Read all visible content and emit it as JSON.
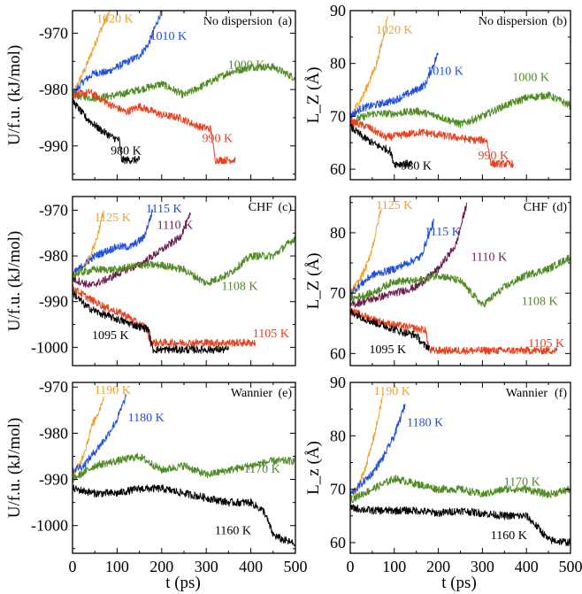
{
  "chart_data": {
    "type": "line",
    "shared_xlabel": "t (ps)",
    "xlim": [
      0,
      500
    ],
    "x_ticks": [
      0,
      100,
      200,
      300,
      400,
      500
    ],
    "panels": [
      {
        "panel_label": "(a)",
        "method": "No dispersion",
        "ylabel": "U/f.u. (kJ/mol)",
        "ylim": [
          -996,
          -966
        ],
        "y_ticks": [
          -990,
          -980,
          -970
        ],
        "series": [
          {
            "name": "1020 K",
            "color": "#f0a22e",
            "label_xy": [
              95,
              -967.3
            ],
            "x": [
              0,
              15,
              30,
              45,
              60,
              75,
              85
            ],
            "y": [
              -981,
              -978.5,
              -976,
              -973,
              -970,
              -967.5,
              -966
            ]
          },
          {
            "name": "1010 K",
            "color": "#1f4fe0",
            "label_xy": [
              215,
              -970.4
            ],
            "x": [
              0,
              25,
              50,
              75,
              100,
              125,
              150,
              170,
              185,
              200
            ],
            "y": [
              -981,
              -978.5,
              -977,
              -977,
              -976,
              -975,
              -974,
              -972,
              -969,
              -966
            ]
          },
          {
            "name": "1000 K",
            "color": "#4f8a22",
            "label_xy": [
              390,
              -975.5
            ],
            "x": [
              0,
              50,
              100,
              150,
              200,
              250,
              300,
              350,
              400,
              450,
              500
            ],
            "y": [
              -981,
              -981.5,
              -981,
              -980,
              -979,
              -981,
              -979,
              -977,
              -976,
              -976,
              -978
            ]
          },
          {
            "name": "990 K",
            "color": "#e8401c",
            "label_xy": [
              325,
              -988.5
            ],
            "x": [
              0,
              40,
              80,
              120,
              150,
              200,
              240,
              280,
              310,
              320,
              365
            ],
            "y": [
              -981,
              -980.5,
              -982.5,
              -984,
              -983,
              -984.5,
              -985,
              -986.5,
              -987,
              -992.5,
              -992.5
            ]
          },
          {
            "name": "980 K",
            "color": "#000000",
            "label_xy": [
              120,
              -990.7
            ],
            "x": [
              0,
              30,
              60,
              90,
              105,
              110,
              150
            ],
            "y": [
              -982,
              -985,
              -987,
              -988.5,
              -989,
              -992.5,
              -992.5
            ]
          }
        ]
      },
      {
        "panel_label": "(b)",
        "method": "No dispersion",
        "ylabel": "L_Z (Å)",
        "ylim": [
          58,
          90
        ],
        "y_ticks": [
          60,
          70,
          80,
          90
        ],
        "series": [
          {
            "name": "1020 K",
            "color": "#f0a22e",
            "label_xy": [
              100,
              86.5
            ],
            "x": [
              0,
              15,
              30,
              45,
              60,
              75,
              85
            ],
            "y": [
              70,
              72,
              74,
              77,
              80,
              85,
              89
            ]
          },
          {
            "name": "1010 K",
            "color": "#1f4fe0",
            "label_xy": [
              215,
              78.7
            ],
            "x": [
              0,
              25,
              50,
              75,
              100,
              125,
              150,
              170,
              185,
              200
            ],
            "y": [
              70,
              71.5,
              72,
              72.5,
              73,
              74,
              75,
              76,
              79,
              82
            ]
          },
          {
            "name": "1000 K",
            "color": "#4f8a22",
            "label_xy": [
              410,
              77.5
            ],
            "x": [
              0,
              50,
              100,
              150,
              200,
              250,
              300,
              350,
              400,
              450,
              500
            ],
            "y": [
              69,
              70.5,
              70.5,
              71,
              70,
              68.5,
              70,
              72,
              73.5,
              74,
              72
            ]
          },
          {
            "name": "990 K",
            "color": "#e8401c",
            "label_xy": [
              325,
              62.7
            ],
            "x": [
              0,
              40,
              80,
              120,
              160,
              200,
              240,
              280,
              310,
              320,
              370
            ],
            "y": [
              69,
              68,
              66,
              66.5,
              67,
              66.5,
              66,
              65.5,
              65.5,
              61,
              61
            ]
          },
          {
            "name": "980 K",
            "color": "#000000",
            "label_xy": [
              150,
              60.8
            ],
            "x": [
              0,
              30,
              60,
              90,
              100,
              140
            ],
            "y": [
              68,
              66,
              64.5,
              63.5,
              61,
              61
            ]
          }
        ]
      },
      {
        "panel_label": "(c)",
        "method": "CHF",
        "ylabel": "U/f.u. (kJ/mol)",
        "ylim": [
          -1004,
          -967
        ],
        "y_ticks": [
          -1000,
          -990,
          -980,
          -970
        ],
        "series": [
          {
            "name": "1125 K",
            "color": "#f0a22e",
            "label_xy": [
              90,
              -971.5
            ],
            "x": [
              0,
              20,
              40,
              55,
              70
            ],
            "y": [
              -985,
              -983,
              -980,
              -976,
              -970
            ]
          },
          {
            "name": "1115 K",
            "color": "#1f4fe0",
            "label_xy": [
              205,
              -969.5
            ],
            "x": [
              0,
              50,
              100,
              130,
              160,
              180
            ],
            "y": [
              -984,
              -980,
              -978,
              -978,
              -976,
              -970
            ]
          },
          {
            "name": "1110 K",
            "color": "#6b1d52",
            "label_xy": [
              230,
              -973.1
            ],
            "x": [
              0,
              40,
              80,
              120,
              150,
              180,
              210,
              240,
              265
            ],
            "y": [
              -985,
              -986.5,
              -985,
              -983,
              -982,
              -980,
              -978,
              -976,
              -971
            ]
          },
          {
            "name": "1108 K",
            "color": "#4f8a22",
            "label_xy": [
              375,
              -986.5
            ],
            "x": [
              0,
              50,
              100,
              150,
              200,
              250,
              300,
              350,
              400,
              450,
              500
            ],
            "y": [
              -984,
              -983,
              -983,
              -982,
              -982,
              -983,
              -986,
              -984,
              -980,
              -980,
              -976
            ]
          },
          {
            "name": "1105 K",
            "color": "#e8401c",
            "label_xy": [
              445,
              -996.8
            ],
            "x": [
              0,
              40,
              80,
              120,
              150,
              165,
              175,
              250,
              350,
              410
            ],
            "y": [
              -987,
              -989.5,
              -991.5,
              -993,
              -995,
              -995.5,
              -999,
              -999,
              -999,
              -999
            ]
          },
          {
            "name": "1095 K",
            "color": "#000000",
            "label_xy": [
              85,
              -997.2
            ],
            "x": [
              0,
              30,
              60,
              90,
              120,
              150,
              170,
              180,
              250,
              350
            ],
            "y": [
              -988,
              -991,
              -992.5,
              -993.5,
              -994.5,
              -995.5,
              -996,
              -1000.5,
              -1000.5,
              -1000.5
            ]
          }
        ]
      },
      {
        "panel_label": "(d)",
        "method": "CHF",
        "ylabel": "L_Z (Å)",
        "ylim": [
          58,
          86
        ],
        "y_ticks": [
          60,
          70,
          80
        ],
        "series": [
          {
            "name": "1125 K",
            "color": "#f0a22e",
            "label_xy": [
              100,
              84.7
            ],
            "x": [
              0,
              20,
              40,
              55,
              70
            ],
            "y": [
              70,
              72,
              75,
              79,
              84
            ]
          },
          {
            "name": "1115 K",
            "color": "#1f4fe0",
            "label_xy": [
              210,
              80.3
            ],
            "x": [
              0,
              50,
              100,
              130,
              160,
              190
            ],
            "y": [
              70,
              73,
              74,
              75,
              76,
              82
            ]
          },
          {
            "name": "1110 K",
            "color": "#6b1d52",
            "label_xy": [
              315,
              76.1
            ],
            "x": [
              0,
              50,
              100,
              150,
              200,
              240,
              265
            ],
            "y": [
              68,
              69,
              70,
              71,
              74,
              78,
              85
            ]
          },
          {
            "name": "1108 K",
            "color": "#4f8a22",
            "label_xy": [
              430,
              68.8
            ],
            "x": [
              0,
              50,
              100,
              150,
              200,
              250,
              300,
              350,
              400,
              450,
              500
            ],
            "y": [
              69,
              70,
              72,
              72,
              73,
              72,
              68,
              71,
              73,
              74,
              76
            ]
          },
          {
            "name": "1105 K",
            "color": "#e8401c",
            "label_xy": [
              445,
              61.8
            ],
            "x": [
              0,
              40,
              80,
              120,
              160,
              170,
              180,
              300,
              400,
              470
            ],
            "y": [
              67,
              66,
              65,
              64.5,
              64,
              64,
              60.5,
              60.5,
              60.5,
              60.5
            ]
          },
          {
            "name": "1095 K",
            "color": "#000000",
            "label_xy": [
              85,
              60.8
            ],
            "x": [
              0,
              40,
              80,
              120,
              150,
              165,
              180
            ],
            "y": [
              67,
              65.5,
              64.5,
              63.5,
              63,
              61.5,
              61
            ]
          }
        ]
      },
      {
        "panel_label": "(e)",
        "method": "Wannier",
        "ylabel": "U/f.u. (kJ/mol)",
        "ylim": [
          -1006,
          -969
        ],
        "y_ticks": [
          -1000,
          -990,
          -980,
          -970
        ],
        "series": [
          {
            "name": "1190 K",
            "color": "#f0a22e",
            "label_xy": [
              90,
              -970.5
            ],
            "x": [
              0,
              15,
              30,
              45,
              60,
              70
            ],
            "y": [
              -989,
              -987,
              -983,
              -978,
              -975,
              -972
            ]
          },
          {
            "name": "1180 K",
            "color": "#1f4fe0",
            "label_xy": [
              165,
              -976.5
            ],
            "x": [
              0,
              25,
              50,
              75,
              100,
              120
            ],
            "y": [
              -988,
              -987,
              -984,
              -981,
              -977,
              -972
            ]
          },
          {
            "name": "1170 K",
            "color": "#4f8a22",
            "label_xy": [
              425,
              -987.6
            ],
            "x": [
              0,
              50,
              100,
              150,
              200,
              250,
              300,
              350,
              400,
              450,
              500
            ],
            "y": [
              -990,
              -987,
              -986,
              -985,
              -988,
              -987,
              -989,
              -988,
              -987,
              -986,
              -986
            ]
          },
          {
            "name": "1160 K",
            "color": "#000000",
            "label_xy": [
              360,
              -1000.9
            ],
            "x": [
              0,
              50,
              100,
              150,
              200,
              250,
              300,
              350,
              400,
              430,
              450,
              470,
              500
            ],
            "y": [
              -992,
              -993,
              -993,
              -992,
              -992,
              -993,
              -994,
              -995,
              -995,
              -997,
              -1002,
              -1003,
              -1004
            ]
          }
        ]
      },
      {
        "panel_label": "(f)",
        "method": "Wannier",
        "ylabel": "L_z (Å)",
        "ylim": [
          58,
          90
        ],
        "y_ticks": [
          60,
          70,
          80,
          90
        ],
        "series": [
          {
            "name": "1190 K",
            "color": "#f0a22e",
            "label_xy": [
              95,
              88.5
            ],
            "x": [
              0,
              15,
              30,
              45,
              60,
              75
            ],
            "y": [
              68,
              70,
              73,
              77,
              82,
              88
            ]
          },
          {
            "name": "1180 K",
            "color": "#1f4fe0",
            "label_xy": [
              170,
              82.6
            ],
            "x": [
              0,
              25,
              50,
              75,
              100,
              125
            ],
            "y": [
              69,
              71,
              73,
              76,
              80,
              86
            ]
          },
          {
            "name": "1170 K",
            "color": "#4f8a22",
            "label_xy": [
              390,
              71.5
            ],
            "x": [
              0,
              50,
              100,
              150,
              200,
              250,
              300,
              350,
              400,
              450,
              500
            ],
            "y": [
              68,
              70,
              72,
              71,
              70,
              70,
              69,
              70,
              70,
              69,
              70
            ]
          },
          {
            "name": "1160 K",
            "color": "#000000",
            "label_xy": [
              360,
              61.5
            ],
            "x": [
              0,
              50,
              100,
              150,
              200,
              250,
              300,
              350,
              400,
              430,
              450,
              500
            ],
            "y": [
              66.5,
              66,
              66,
              66,
              65.5,
              66,
              65.5,
              65,
              65,
              62.5,
              60.5,
              60
            ]
          }
        ]
      }
    ]
  }
}
